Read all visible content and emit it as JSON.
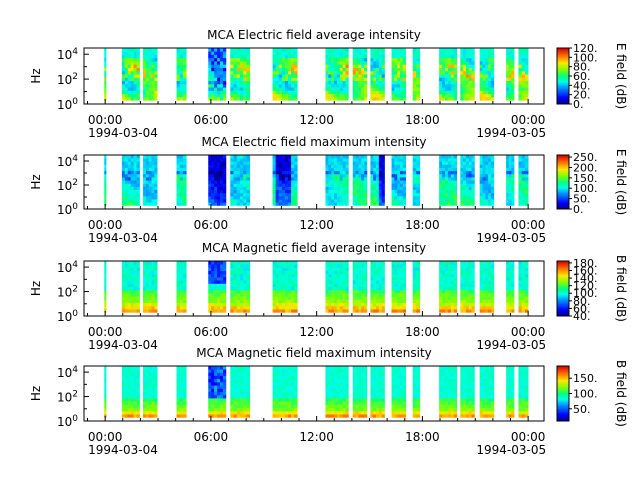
{
  "chart_data": [
    {
      "type": "heatmap",
      "title": "MCA  Electric field average intensity",
      "ylabel": "Hz",
      "colorbar_label": "E field (dB)",
      "colorbar_ticks": [
        "0.",
        "20.",
        "40.",
        "60.",
        "80.",
        "100.",
        "120."
      ],
      "colorbar_range": [
        0,
        120
      ],
      "y_scale": "log",
      "y_range_exp": [
        0,
        4.5
      ],
      "y_ticks": [
        {
          "base": "10",
          "exp": "0"
        },
        {
          "base": "10",
          "exp": "2"
        },
        {
          "base": "10",
          "exp": "4"
        }
      ],
      "x_range_hours": [
        -1.2,
        24.9
      ],
      "x_tick_labels": [
        "00:00",
        "06:00",
        "12:00",
        "18:00",
        "00:00"
      ],
      "x_date_labels": [
        "1994-03-04",
        "1994-03-05"
      ],
      "profile": "avgE"
    },
    {
      "type": "heatmap",
      "title": "MCA  Electric field maximum intensity",
      "ylabel": "Hz",
      "colorbar_label": "E field (dB)",
      "colorbar_ticks": [
        "0.",
        "50.",
        "100.",
        "150.",
        "200.",
        "250."
      ],
      "colorbar_range": [
        0,
        260
      ],
      "y_scale": "log",
      "y_range_exp": [
        0,
        4.5
      ],
      "y_ticks": [
        {
          "base": "10",
          "exp": "0"
        },
        {
          "base": "10",
          "exp": "2"
        },
        {
          "base": "10",
          "exp": "4"
        }
      ],
      "x_range_hours": [
        -1.2,
        24.9
      ],
      "x_tick_labels": [
        "00:00",
        "06:00",
        "12:00",
        "18:00",
        "00:00"
      ],
      "x_date_labels": [
        "1994-03-04",
        "1994-03-05"
      ],
      "profile": "maxE"
    },
    {
      "type": "heatmap",
      "title": "MCA  Magnetic field average intensity",
      "ylabel": "Hz",
      "colorbar_label": "B field (dB)",
      "colorbar_ticks": [
        "40.",
        "60.",
        "80.",
        "100.",
        "120.",
        "140.",
        "160.",
        "180."
      ],
      "colorbar_range": [
        40,
        185
      ],
      "y_scale": "log",
      "y_range_exp": [
        0,
        4.5
      ],
      "y_ticks": [
        {
          "base": "10",
          "exp": "0"
        },
        {
          "base": "10",
          "exp": "2"
        },
        {
          "base": "10",
          "exp": "4"
        }
      ],
      "x_range_hours": [
        -1.2,
        24.9
      ],
      "x_tick_labels": [
        "00:00",
        "06:00",
        "12:00",
        "18:00",
        "00:00"
      ],
      "x_date_labels": [
        "1994-03-04",
        "1994-03-05"
      ],
      "profile": "avgB"
    },
    {
      "type": "heatmap",
      "title": "MCA  Magnetic field maximum intensity",
      "ylabel": "Hz",
      "colorbar_label": "B field (dB)",
      "colorbar_ticks": [
        "50.",
        "100.",
        "150."
      ],
      "colorbar_range": [
        10,
        190
      ],
      "y_scale": "log",
      "y_range_exp": [
        0,
        4.5
      ],
      "y_ticks": [
        {
          "base": "10",
          "exp": "0"
        },
        {
          "base": "10",
          "exp": "2"
        },
        {
          "base": "10",
          "exp": "4"
        }
      ],
      "x_range_hours": [
        -1.2,
        24.9
      ],
      "x_tick_labels": [
        "00:00",
        "06:00",
        "12:00",
        "18:00",
        "00:00"
      ],
      "x_date_labels": [
        "1994-03-04",
        "1994-03-05"
      ],
      "profile": "maxB"
    }
  ],
  "data_segments_hours": [
    [
      -0.05,
      0.05
    ],
    [
      0.95,
      1.95
    ],
    [
      2.15,
      2.95
    ],
    [
      4.05,
      4.6
    ],
    [
      5.85,
      6.85
    ],
    [
      7.1,
      8.2
    ],
    [
      9.5,
      10.9
    ],
    [
      12.5,
      13.8
    ],
    [
      14.05,
      14.85
    ],
    [
      15.05,
      15.85
    ],
    [
      16.25,
      17.05
    ],
    [
      17.45,
      17.85
    ],
    [
      18.95,
      19.95
    ],
    [
      20.15,
      20.95
    ],
    [
      21.25,
      22.05
    ],
    [
      22.75,
      23.2
    ],
    [
      23.45,
      24.0
    ]
  ]
}
